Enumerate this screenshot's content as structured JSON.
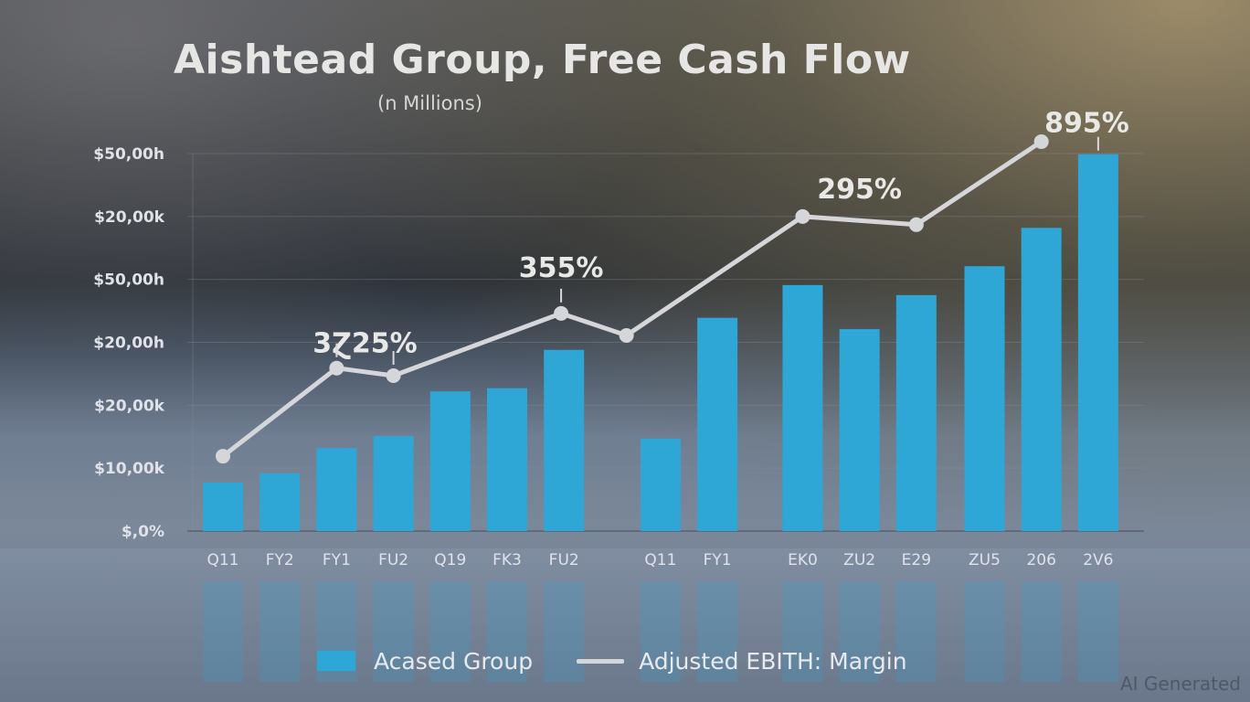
{
  "header": {
    "title": "Aishtead Group, Free Cash Flow",
    "subtitle": "(n Millions)"
  },
  "legend": {
    "bars_label": "Acased Group",
    "line_label": "Adjusted EBITH: Margin"
  },
  "watermark": "AI Generated",
  "colors": {
    "bar": "#2ea6d6",
    "line": "#d4d6da",
    "grid": "#8a919c"
  },
  "chart_data": {
    "type": "bar",
    "title": "Aishtead Group, Free Cash Flow",
    "subtitle": "(n Millions)",
    "xlabel": "",
    "ylabel": "",
    "grid": true,
    "legend_position": "bottom",
    "y_tick_labels": [
      "$,0%",
      "$10,00k",
      "$20,00k",
      "$20,00h",
      "$50,00h",
      "$20,00k",
      "$50,00h"
    ],
    "ylim": [
      0,
      6.3
    ],
    "categories": [
      "Q11",
      "FY2",
      "FY1",
      "FU2",
      "Q19",
      "FK3",
      "FU2",
      "Q11",
      "FY1",
      "EK0",
      "ZU2",
      "E29",
      "ZU5",
      "206",
      "2V6"
    ],
    "category_positions": [
      0,
      1,
      2,
      3,
      4,
      5,
      6,
      7.7,
      8.7,
      10.2,
      11.2,
      12.2,
      13.4,
      14.4,
      15.4
    ],
    "xlim": [
      -0.4,
      15.9
    ],
    "series": [
      {
        "name": "Acased Group",
        "type": "bar",
        "values": [
          0.77,
          0.92,
          1.32,
          1.51,
          2.22,
          2.27,
          2.88,
          1.47,
          3.39,
          3.91,
          3.21,
          3.75,
          4.21,
          4.82,
          5.99
        ]
      },
      {
        "name": "Adjusted EBITH: Margin",
        "type": "line",
        "x": [
          0,
          2.0,
          3.0,
          5.95,
          7.1,
          10.2,
          12.2,
          14.4
        ],
        "values": [
          1.19,
          2.59,
          2.47,
          3.46,
          3.11,
          5.0,
          4.87,
          6.19
        ]
      }
    ],
    "annotations": [
      {
        "text": "3Ɀ25%",
        "x": 2.5,
        "y": 3.0,
        "leader_at": [
          2.0,
          3.0
        ]
      },
      {
        "text": "355%",
        "x": 5.95,
        "y": 4.2,
        "leader_at": [
          5.95
        ]
      },
      {
        "text": "295%",
        "x": 11.2,
        "y": 5.45
      },
      {
        "text": "895%",
        "x": 15.2,
        "y": 6.5,
        "leader_at": [
          15.4
        ]
      }
    ]
  }
}
